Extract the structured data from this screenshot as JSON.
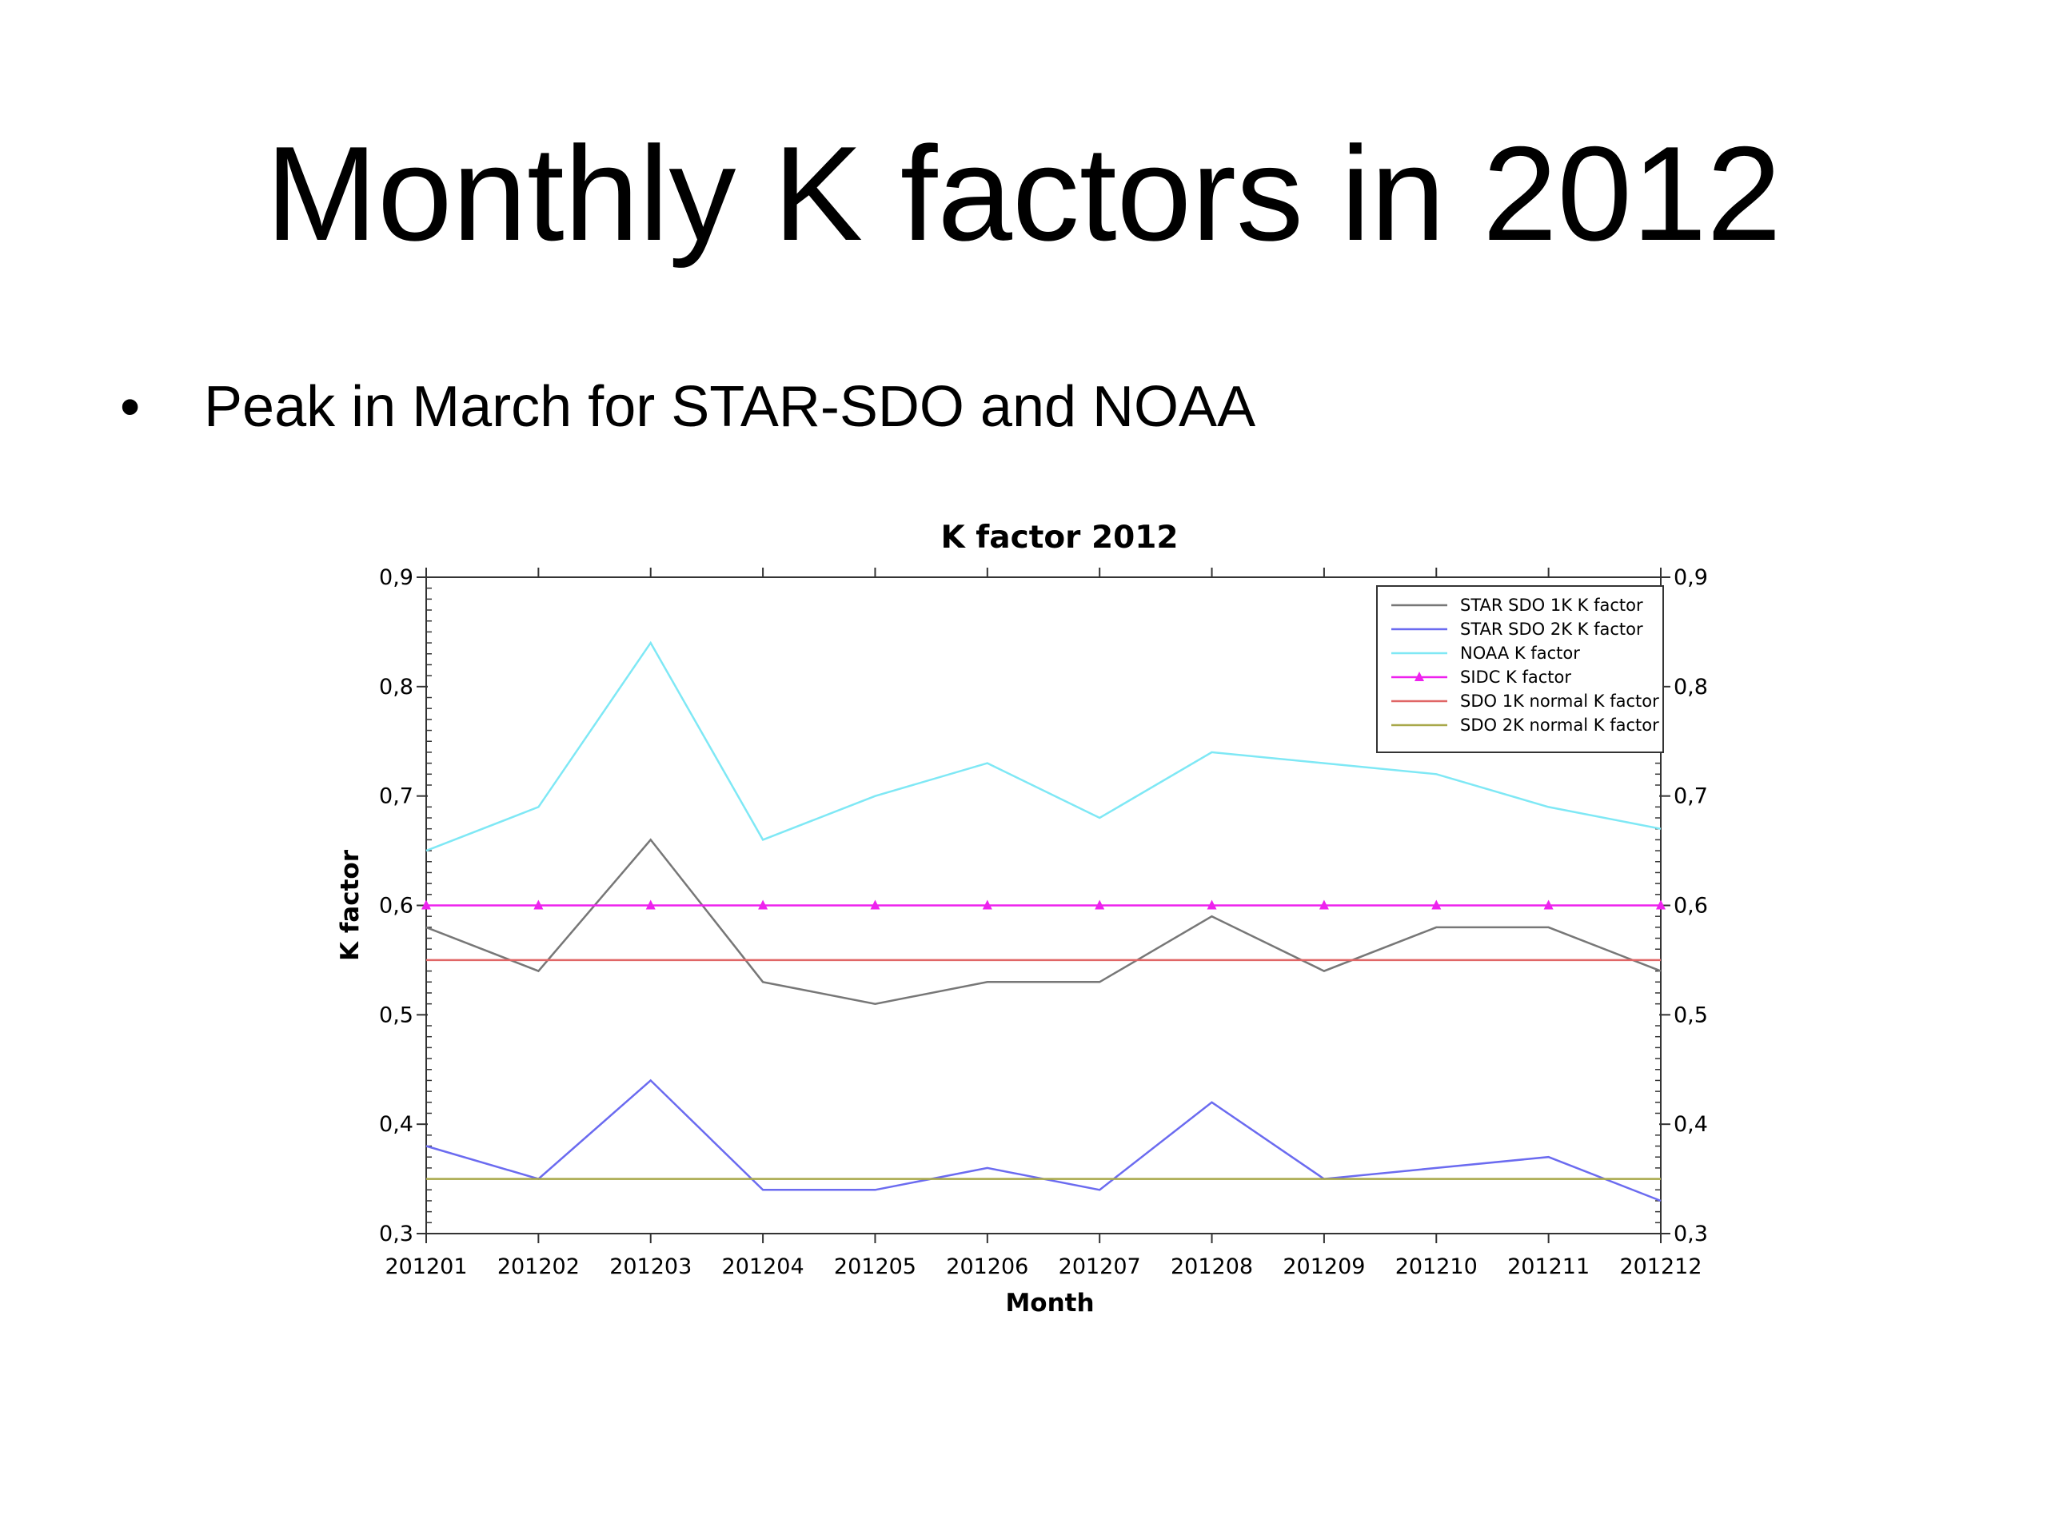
{
  "slide": {
    "title": "Monthly K factors in 2012",
    "bullet": "Peak in March for STAR-SDO and NOAA"
  },
  "chart_data": {
    "type": "line",
    "title": "K factor 2012",
    "xlabel": "Month",
    "ylabel": "K factor",
    "categories": [
      "201201",
      "201202",
      "201203",
      "201204",
      "201205",
      "201206",
      "201207",
      "201208",
      "201209",
      "201210",
      "201211",
      "201212"
    ],
    "ylim": [
      0.3,
      0.9
    ],
    "yticks": [
      0.3,
      0.4,
      0.5,
      0.6,
      0.7,
      0.8,
      0.9
    ],
    "ytick_labels": [
      "0,3",
      "0,4",
      "0,5",
      "0,6",
      "0,7",
      "0,8",
      "0,9"
    ],
    "secondary_y_axis": true,
    "grid": false,
    "legend_position": "top-right",
    "series": [
      {
        "name": "STAR SDO 1K K factor",
        "color": "#777777",
        "marker": "none",
        "values": [
          0.58,
          0.54,
          0.66,
          0.53,
          0.51,
          0.53,
          0.53,
          0.59,
          0.54,
          0.58,
          0.58,
          0.54
        ]
      },
      {
        "name": "STAR SDO 2K K factor",
        "color": "#6b6bf0",
        "marker": "none",
        "values": [
          0.38,
          0.35,
          0.44,
          0.34,
          0.34,
          0.36,
          0.34,
          0.42,
          0.35,
          0.36,
          0.37,
          0.33
        ]
      },
      {
        "name": "NOAA K factor",
        "color": "#7fe8f5",
        "marker": "none",
        "values": [
          0.65,
          0.69,
          0.84,
          0.66,
          0.7,
          0.73,
          0.68,
          0.74,
          0.73,
          0.72,
          0.69,
          0.67
        ]
      },
      {
        "name": "SIDC K factor",
        "color": "#ee22ee",
        "marker": "triangle",
        "values": [
          0.6,
          0.6,
          0.6,
          0.6,
          0.6,
          0.6,
          0.6,
          0.6,
          0.6,
          0.6,
          0.6,
          0.6
        ]
      },
      {
        "name": "SDO 1K normal K factor",
        "color": "#e06666",
        "marker": "none",
        "values": [
          0.55,
          0.55,
          0.55,
          0.55,
          0.55,
          0.55,
          0.55,
          0.55,
          0.55,
          0.55,
          0.55,
          0.55
        ]
      },
      {
        "name": "SDO 2K normal K factor",
        "color": "#a8a84a",
        "marker": "none",
        "values": [
          0.35,
          0.35,
          0.35,
          0.35,
          0.35,
          0.35,
          0.35,
          0.35,
          0.35,
          0.35,
          0.35,
          0.35
        ]
      }
    ]
  }
}
